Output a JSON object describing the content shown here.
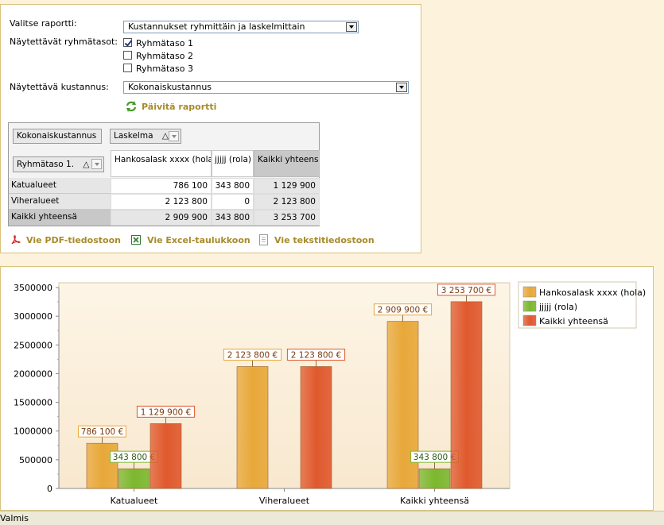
{
  "form": {
    "report_label": "Valitse raportti:",
    "report_value": "Kustannukset ryhmittäin ja laskelmittain",
    "levels_label": "Näytettävät ryhmätasot:",
    "levels": [
      {
        "label": "Ryhmätaso 1",
        "checked": true
      },
      {
        "label": "Ryhmätaso 2",
        "checked": false
      },
      {
        "label": "Ryhmätaso 3",
        "checked": false
      }
    ],
    "cost_label": "Näytettävä kustannus:",
    "cost_value": "Kokonaiskustannus",
    "refresh_label": "Päivitä raportti"
  },
  "pivot": {
    "data_field": "Kokonaiskustannus",
    "column_field": "Laskelma",
    "row_field": "Ryhmätaso 1.",
    "sort_glyph": "△",
    "columns": [
      "Hankosalask xxxx (hola)",
      "jjjjj (rola)",
      "Kaikki yhteensä"
    ],
    "rows": [
      {
        "label": "Katualueet",
        "values": [
          "786 100",
          "343 800",
          "1 129 900"
        ]
      },
      {
        "label": "Viheralueet",
        "values": [
          "2 123 800",
          "0",
          "2 123 800"
        ]
      },
      {
        "label": "Kaikki yhteensä",
        "values": [
          "2 909 900",
          "343 800",
          "3 253 700"
        ]
      }
    ]
  },
  "export": {
    "pdf": "Vie PDF-tiedostoon",
    "excel": "Vie Excel-taulukkoon",
    "text": "Vie tekstitiedostoon"
  },
  "chart_data": {
    "type": "bar",
    "categories": [
      "Katualueet",
      "Viheralueet",
      "Kaikki yhteensä"
    ],
    "series": [
      {
        "name": "Hankosalask xxxx (hola)",
        "values": [
          786100,
          2123800,
          2909900
        ],
        "labels": [
          "786 100 €",
          "2 123 800 €",
          "2 909 900 €"
        ],
        "color": "#e8a83a"
      },
      {
        "name": "jjjjj (rola)",
        "values": [
          343800,
          0,
          343800
        ],
        "labels": [
          "343 800 €",
          "",
          "343 800 €"
        ],
        "color": "#7cb82f"
      },
      {
        "name": "Kaikki yhteensä",
        "values": [
          1129900,
          2123800,
          3253700
        ],
        "labels": [
          "1 129 900 €",
          "2 123 800 €",
          "3 253 700 €"
        ],
        "color": "#e0592e"
      }
    ],
    "ylim": [
      0,
      3500000
    ],
    "yticks": [
      "0",
      "500000",
      "1000000",
      "1500000",
      "2000000",
      "2500000",
      "3000000",
      "3500000"
    ],
    "legend": "top-right",
    "grid": false
  },
  "status": "Valmis"
}
